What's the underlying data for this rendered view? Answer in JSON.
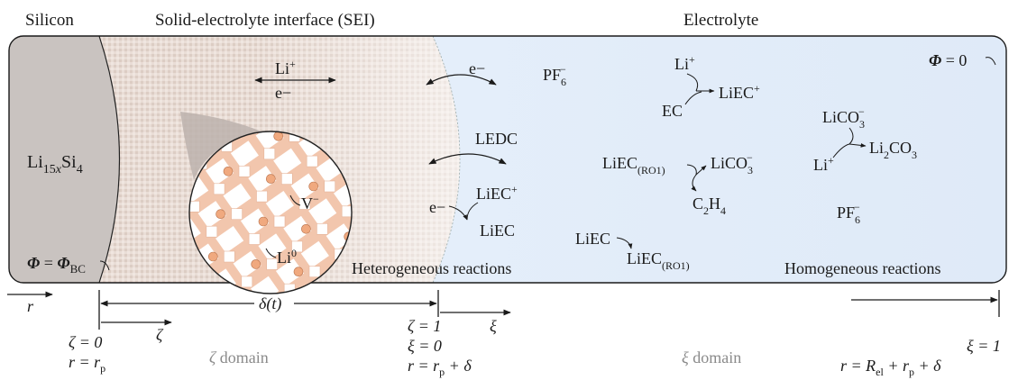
{
  "colors": {
    "silicon": "#c8c2bf",
    "sei": "#e7dcd5",
    "electrolyte": "#e6f0fb",
    "particle_stripe": "#f2c6ad",
    "li_dot": "#f0a97f",
    "domain_text": "#8a8a8a"
  },
  "regions": {
    "silicon": "Silicon",
    "sei": "Solid-electrolyte interface (SEI)",
    "electrolyte": "Electrolyte"
  },
  "silicon_body": {
    "base": "Li",
    "sub1": "15",
    "sub_italic": "x",
    "mid": "Si",
    "sub2": "4"
  },
  "boundary_left": {
    "lhs": "Φ",
    "eq": " = ",
    "rhs": "Φ",
    "sub": "BC"
  },
  "boundary_right": {
    "lhs": "Φ",
    "eq": " = 0"
  },
  "sei_transport": {
    "li": "Li",
    "li_sup": "+",
    "e": "e−"
  },
  "particle": {
    "vacancy": "V",
    "vacancy_sup": "−",
    "lithium": "Li",
    "lithium_sup": "0"
  },
  "interface": {
    "e_minus_top": "e−",
    "ledc": "LEDC",
    "e_minus_low": "e−",
    "liec_plus": "LiEC",
    "liec_plus_sup": "+",
    "liec": "LiEC",
    "label": "Heterogeneous reactions"
  },
  "electrolyte_species": {
    "pf6_a": "PF",
    "pf6_a_sub": "6",
    "pf6_a_sup": "−",
    "li_plus": "Li",
    "li_plus_sup": "+",
    "ec": "EC",
    "liec_plus": "LiEC",
    "liec_plus_sup": "+",
    "liec_ro1": "LiEC",
    "liec_ro1_sub": "(RO1)",
    "lico3": "LiCO",
    "lico3_sub": "3",
    "lico3_sup": "−",
    "c2h4_c": "C",
    "c2h4_sub1": "2",
    "c2h4_h": "H",
    "c2h4_sub2": "4",
    "liec_b": "LiEC",
    "liec_ro1_b": "LiEC",
    "liec_ro1_b_sub": "(RO1)",
    "lico3_b": "LiCO",
    "lico3_b_sub": "3",
    "lico3_b_sup": "−",
    "li_b": "Li",
    "li_b_sup": "+",
    "li2co3_a": "Li",
    "li2co3_sub1": "2",
    "li2co3_b": "CO",
    "li2co3_sub2": "3",
    "pf6_b": "PF",
    "pf6_b_sub": "6",
    "pf6_b_sup": "−",
    "homogeneous_label": "Homogeneous reactions"
  },
  "axis": {
    "r": "r",
    "delta": "δ(t)",
    "zeta": "ζ",
    "xi": "ξ",
    "left_zeta": "ζ = 0",
    "left_r": "r",
    "left_r_eq": " = r",
    "left_r_sub": "p",
    "mid_zeta": "ζ = 1",
    "mid_xi": "ξ = 0",
    "mid_r": "r",
    "mid_r_eq": " = r",
    "mid_r_sub": "p",
    "mid_r_plus": " + δ",
    "zeta_domain_sym": "ζ",
    "zeta_domain_word": " domain",
    "xi_domain_sym": "ξ",
    "xi_domain_word": " domain",
    "right_xi": "ξ = 1",
    "right_r": "r",
    "right_r_eq": " = R",
    "right_r_sub1": "el",
    "right_r_plus": " + r",
    "right_r_sub2": "p",
    "right_r_end": " + δ"
  }
}
